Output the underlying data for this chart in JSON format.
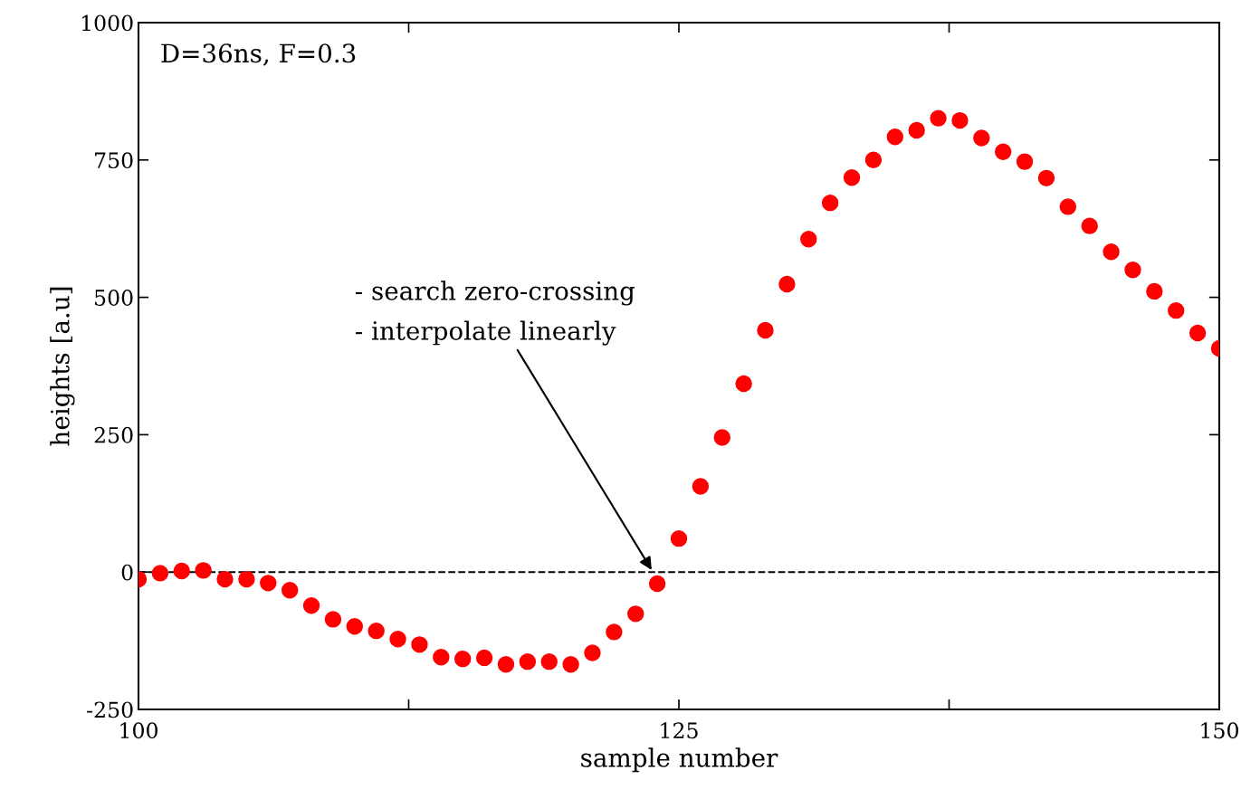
{
  "chart_data": {
    "type": "scatter",
    "xlabel": "sample number",
    "ylabel": "heights [a.u]",
    "x": [
      100,
      101,
      102,
      103,
      104,
      105,
      106,
      107,
      108,
      109,
      110,
      111,
      112,
      113,
      114,
      115,
      116,
      117,
      118,
      119,
      120,
      121,
      122,
      123,
      124,
      125,
      126,
      127,
      128,
      129,
      130,
      131,
      132,
      133,
      134,
      135,
      136,
      137,
      138,
      139,
      140,
      141,
      142,
      143,
      144,
      145,
      146,
      147,
      148,
      149,
      150
    ],
    "series": [
      {
        "color": "#ff0000",
        "values": [
          -13,
          -2,
          2,
          3,
          -13,
          -13,
          -20,
          -33,
          -61,
          -86,
          -99,
          -107,
          -122,
          -132,
          -155,
          -158,
          -156,
          -168,
          -163,
          -163,
          -168,
          -147,
          -109,
          -76,
          -21,
          61,
          156,
          245,
          343,
          440,
          524,
          606,
          672,
          718,
          750,
          792,
          804,
          826,
          822,
          790,
          765,
          747,
          717,
          665,
          630,
          583,
          550,
          511,
          476,
          435,
          407
        ]
      }
    ],
    "marker": "circle",
    "xlim": [
      100,
      150
    ],
    "xticks": [
      100,
      {
        "value": 112.5,
        "label": null
      },
      125,
      {
        "value": 137.5,
        "label": null
      },
      150
    ],
    "ylim": [
      -250,
      1000
    ],
    "yticks": [
      -250,
      0,
      250,
      500,
      750,
      1000
    ],
    "ref_lines": [
      {
        "axis": "y",
        "value": 0,
        "color": "#000000",
        "line_style": "dashed"
      }
    ],
    "annotations": [
      "D=36ns, F=0.3",
      "- search zero-crossing\n- interpolate linearly"
    ],
    "grid": false,
    "legend": false
  }
}
